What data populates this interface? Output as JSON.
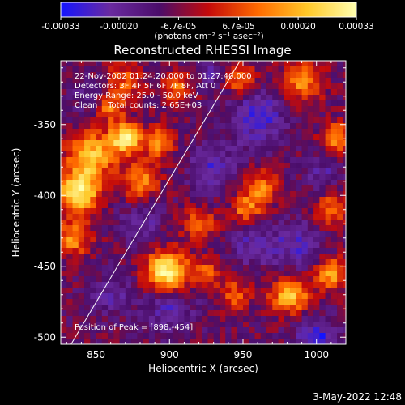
{
  "chart_data": {
    "type": "heatmap",
    "title": "Reconstructed RHESSI Image",
    "xlabel": "Heliocentric X (arcsec)",
    "ylabel": "Heliocentric Y (arcsec)",
    "xlim": [
      826,
      1020
    ],
    "ylim": [
      -505,
      -305
    ],
    "x_ticks": [
      850,
      900,
      950,
      1000
    ],
    "y_ticks": [
      -350,
      -400,
      -450,
      -500
    ],
    "colorbar": {
      "range": [
        -0.00033,
        0.00033
      ],
      "tick_values": [
        -0.00033,
        -0.0002,
        -6.7e-05,
        6.7e-05,
        0.0002,
        0.00033
      ],
      "tick_labels": [
        "-0.00033",
        "-0.00020",
        "-6.7e-05",
        "6.7e-05",
        "0.00020",
        "0.00033"
      ],
      "unit_text": "(photons cm⁻² s⁻¹ asec⁻²)",
      "colormap": [
        "#1414ff",
        "#6a2aa0",
        "#4b0d6a",
        "#c40a0a",
        "#ff6a00",
        "#ffc828",
        "#ffffb0"
      ]
    },
    "annotations": {
      "time_range": "22-Nov-2002 01:24:20.000 to 01:27:40.000",
      "detectors": "Detectors: 3F 4F 5F 6F 7F 8F, Att 0",
      "energy": "Energy Range: 25.0 - 50.0 keV",
      "clean": "Clean    Total counts: 2.65E+03",
      "peak": "Position of Peak = [898,-454]"
    },
    "peak": [
      898,
      -454
    ],
    "hot_spots": [
      {
        "x": 898,
        "y": -454,
        "amp": 1.0,
        "r": 10
      },
      {
        "x": 838,
        "y": -398,
        "amp": 0.9,
        "r": 10
      },
      {
        "x": 846,
        "y": -372,
        "amp": 0.75,
        "r": 11
      },
      {
        "x": 870,
        "y": -360,
        "amp": 0.85,
        "r": 8
      },
      {
        "x": 893,
        "y": -363,
        "amp": 0.6,
        "r": 7
      },
      {
        "x": 880,
        "y": -390,
        "amp": 0.55,
        "r": 9
      },
      {
        "x": 834,
        "y": -430,
        "amp": 0.55,
        "r": 9
      },
      {
        "x": 920,
        "y": -420,
        "amp": 0.45,
        "r": 8
      },
      {
        "x": 870,
        "y": -318,
        "amp": 0.4,
        "r": 9
      },
      {
        "x": 947,
        "y": -318,
        "amp": 0.5,
        "r": 8
      },
      {
        "x": 990,
        "y": -320,
        "amp": 0.55,
        "r": 10
      },
      {
        "x": 962,
        "y": -395,
        "amp": 0.5,
        "r": 9
      },
      {
        "x": 952,
        "y": -410,
        "amp": 0.45,
        "r": 7
      },
      {
        "x": 1015,
        "y": -360,
        "amp": 0.55,
        "r": 8
      },
      {
        "x": 1010,
        "y": -410,
        "amp": 0.5,
        "r": 8
      },
      {
        "x": 982,
        "y": -470,
        "amp": 0.75,
        "r": 9
      },
      {
        "x": 1010,
        "y": -455,
        "amp": 0.6,
        "r": 8
      },
      {
        "x": 945,
        "y": -470,
        "amp": 0.4,
        "r": 8
      },
      {
        "x": 925,
        "y": -455,
        "amp": 0.4,
        "r": 7
      },
      {
        "x": 905,
        "y": -325,
        "amp": 0.45,
        "r": 8
      },
      {
        "x": 860,
        "y": -338,
        "amp": 0.5,
        "r": 7
      }
    ],
    "cold_spots": [
      {
        "x": 1000,
        "y": -502,
        "amp": 1.0,
        "r": 10
      },
      {
        "x": 960,
        "y": -345,
        "amp": 0.8,
        "r": 14
      },
      {
        "x": 930,
        "y": -380,
        "amp": 0.7,
        "r": 11
      },
      {
        "x": 985,
        "y": -435,
        "amp": 0.65,
        "r": 13
      },
      {
        "x": 900,
        "y": -480,
        "amp": 0.65,
        "r": 12
      },
      {
        "x": 860,
        "y": -470,
        "amp": 0.55,
        "r": 10
      },
      {
        "x": 955,
        "y": -435,
        "amp": 0.6,
        "r": 10
      },
      {
        "x": 1005,
        "y": -385,
        "amp": 0.5,
        "r": 9
      },
      {
        "x": 930,
        "y": -315,
        "amp": 0.5,
        "r": 9
      },
      {
        "x": 880,
        "y": -420,
        "amp": 0.55,
        "r": 10
      },
      {
        "x": 845,
        "y": -330,
        "amp": 0.45,
        "r": 8
      }
    ],
    "limb_line": [
      [
        833,
        -505
      ],
      [
        948,
        -305
      ]
    ]
  },
  "timestamp": "3-May-2022 12:48"
}
